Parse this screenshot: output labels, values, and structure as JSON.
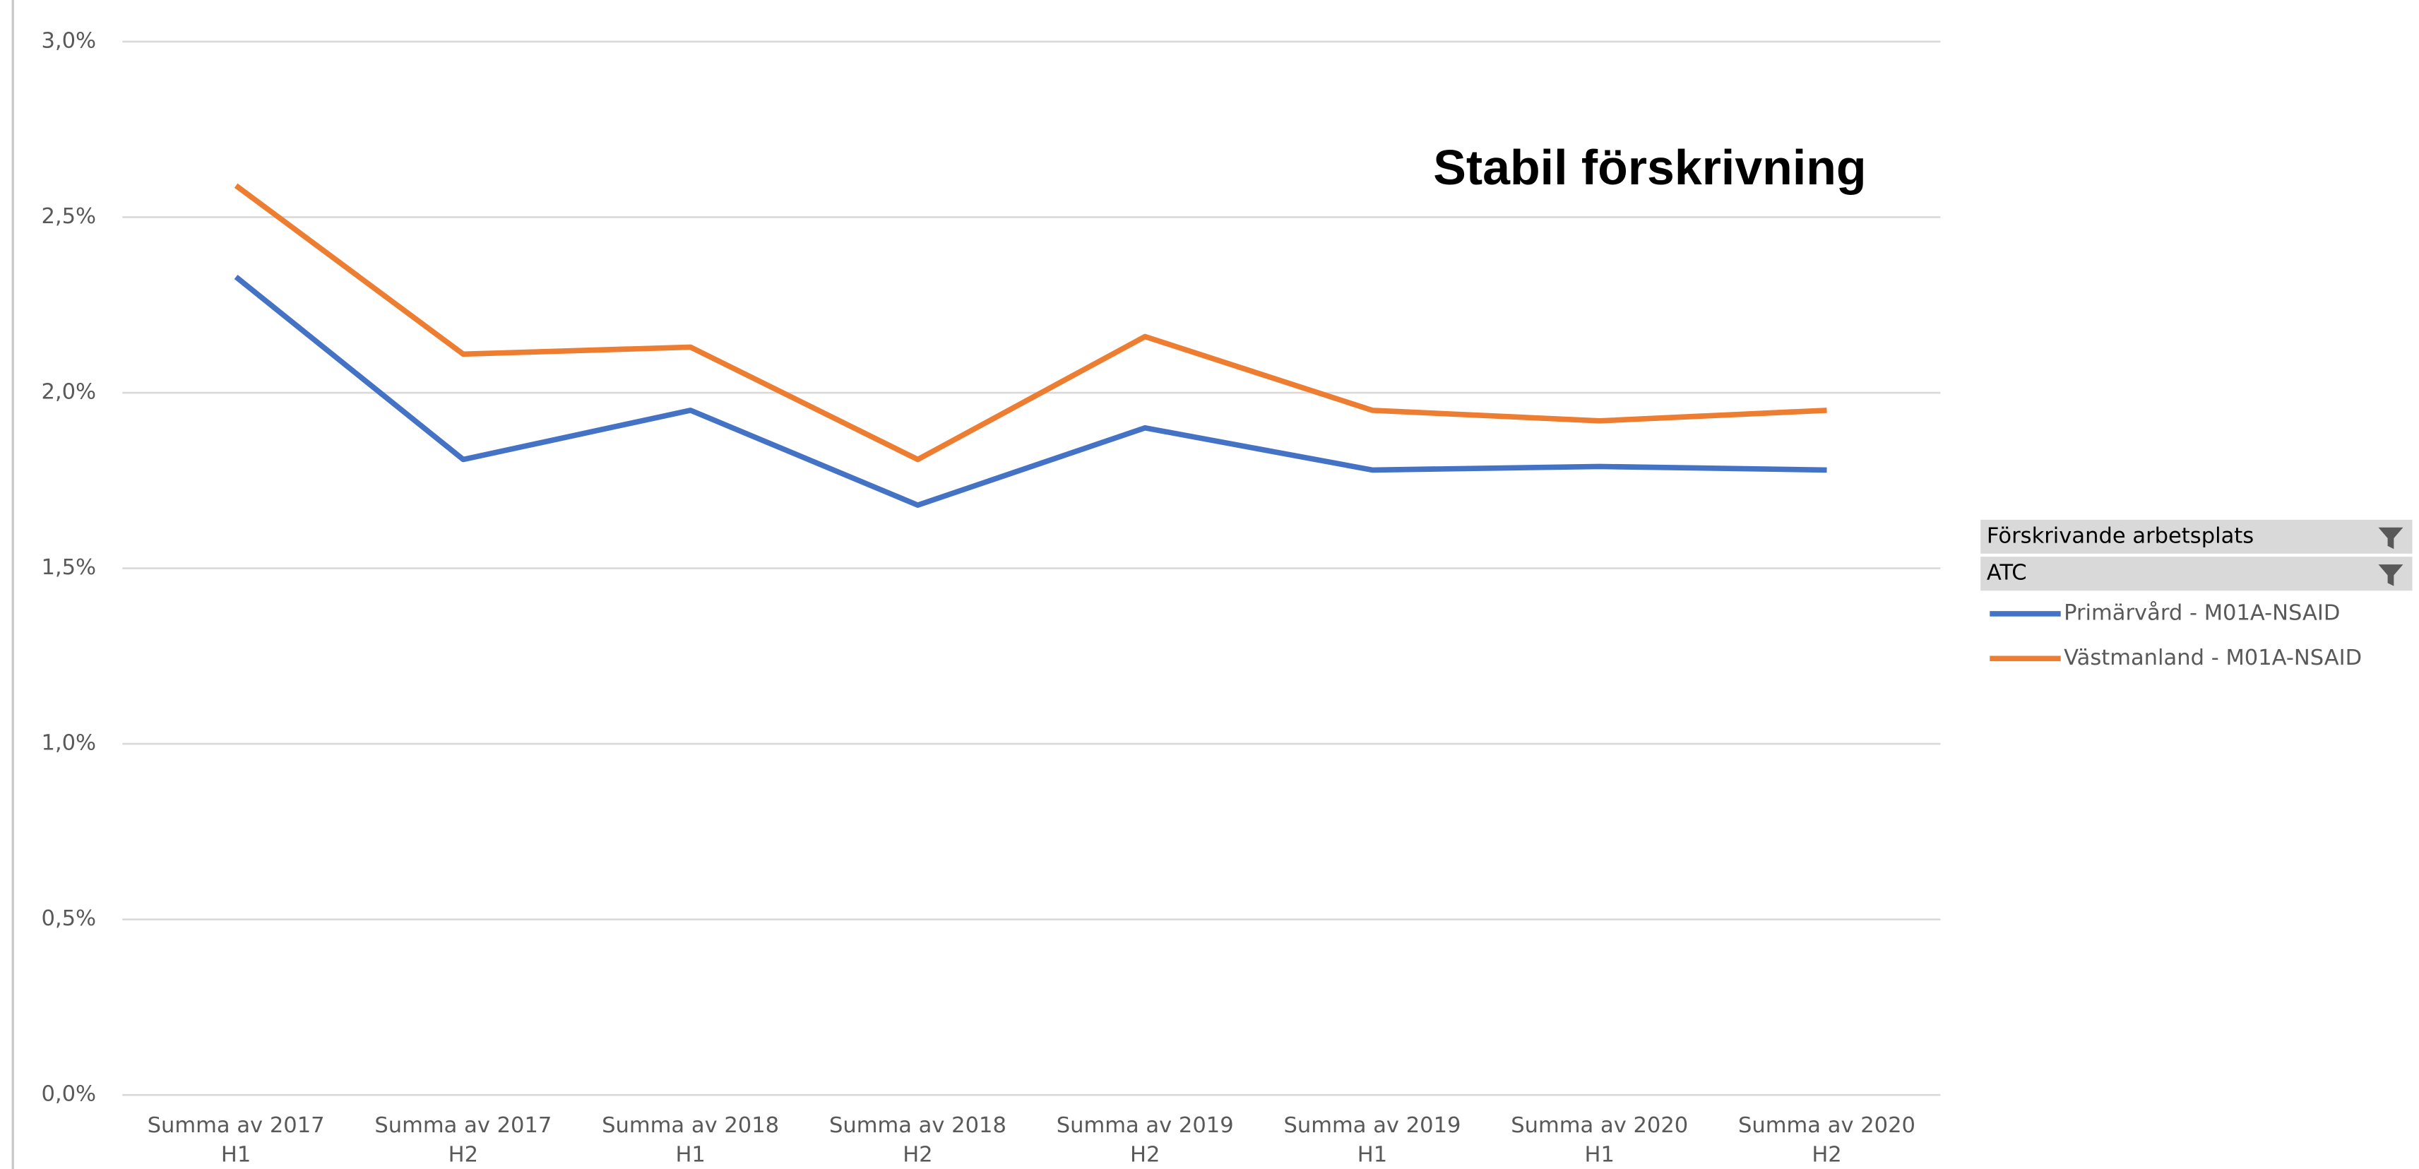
{
  "chart_data": {
    "type": "line",
    "annotation": "Stabil förskrivning",
    "filters": [
      "Förskrivande arbetsplats",
      "ATC"
    ],
    "categories": [
      "Summa av 2017 H1",
      "Summa av 2017 H2",
      "Summa av 2018 H1",
      "Summa av 2018 H2",
      "Summa av 2019 H2",
      "Summa av 2019 H1",
      "Summa av 2020 H1",
      "Summa av 2020 H2"
    ],
    "series": [
      {
        "name": "Primärvård - M01A-NSAID",
        "color": "#4472c4",
        "values": [
          2.33,
          1.81,
          1.95,
          1.68,
          1.9,
          1.78,
          1.79,
          1.78
        ]
      },
      {
        "name": "Västmanland - M01A-NSAID",
        "color": "#ed7d31",
        "values": [
          2.59,
          2.11,
          2.13,
          1.81,
          2.16,
          1.95,
          1.92,
          1.95
        ]
      }
    ],
    "ylim": [
      0,
      3
    ],
    "yticks": [
      {
        "value": 0,
        "label": "0,0%"
      },
      {
        "value": 0.5,
        "label": "0,5%"
      },
      {
        "value": 1,
        "label": "1,0%"
      },
      {
        "value": 1.5,
        "label": "1,5%"
      },
      {
        "value": 2,
        "label": "2,0%"
      },
      {
        "value": 2.5,
        "label": "2,5%"
      },
      {
        "value": 3,
        "label": "3,0%"
      }
    ],
    "grid": true
  }
}
